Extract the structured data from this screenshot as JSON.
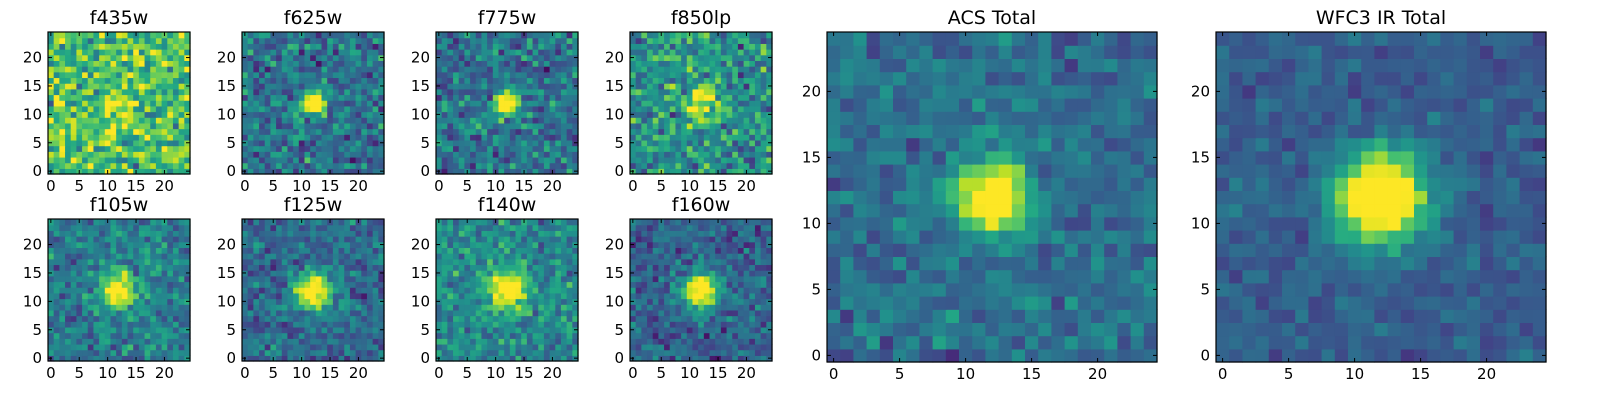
{
  "chart_data": {
    "type": "heatmap",
    "colormap": "viridis",
    "grid_size": 25,
    "source_center": [
      12,
      12
    ],
    "panels": [
      {
        "title": "f435w",
        "xticks": [
          "0",
          "5",
          "10",
          "15",
          "20"
        ],
        "yticks": [
          "0",
          "5",
          "10",
          "15",
          "20"
        ],
        "xlim": [
          -0.5,
          24.5
        ],
        "ylim": [
          -0.5,
          24.5
        ],
        "peak": 0.18,
        "sigma": 2.0,
        "noise": 0.34,
        "baseline": 0.7,
        "seed": 11
      },
      {
        "title": "f625w",
        "xticks": [
          "0",
          "5",
          "10",
          "15",
          "20"
        ],
        "yticks": [
          "0",
          "5",
          "10",
          "15",
          "20"
        ],
        "xlim": [
          -0.5,
          24.5
        ],
        "ylim": [
          -0.5,
          24.5
        ],
        "peak": 0.65,
        "sigma": 1.4,
        "noise": 0.26,
        "baseline": 0.38,
        "seed": 23
      },
      {
        "title": "f775w",
        "xticks": [
          "0",
          "5",
          "10",
          "15",
          "20"
        ],
        "yticks": [
          "0",
          "5",
          "10",
          "15",
          "20"
        ],
        "xlim": [
          -0.5,
          24.5
        ],
        "ylim": [
          -0.5,
          24.5
        ],
        "peak": 0.62,
        "sigma": 1.5,
        "noise": 0.26,
        "baseline": 0.38,
        "seed": 37
      },
      {
        "title": "f850lp",
        "xticks": [
          "0",
          "5",
          "10",
          "15",
          "20"
        ],
        "yticks": [
          "0",
          "5",
          "10",
          "15",
          "20"
        ],
        "xlim": [
          -0.5,
          24.5
        ],
        "ylim": [
          -0.5,
          24.5
        ],
        "peak": 0.42,
        "sigma": 1.9,
        "noise": 0.3,
        "baseline": 0.5,
        "seed": 41
      },
      {
        "title": "f105w",
        "xticks": [
          "0",
          "5",
          "10",
          "15",
          "20"
        ],
        "yticks": [
          "0",
          "5",
          "10",
          "15",
          "20"
        ],
        "xlim": [
          -0.5,
          24.5
        ],
        "ylim": [
          -0.5,
          24.5
        ],
        "peak": 0.55,
        "sigma": 2.1,
        "noise": 0.22,
        "baseline": 0.42,
        "seed": 53
      },
      {
        "title": "f125w",
        "xticks": [
          "0",
          "5",
          "10",
          "15",
          "20"
        ],
        "yticks": [
          "0",
          "5",
          "10",
          "15",
          "20"
        ],
        "xlim": [
          -0.5,
          24.5
        ],
        "ylim": [
          -0.5,
          24.5
        ],
        "peak": 0.62,
        "sigma": 2.2,
        "noise": 0.2,
        "baseline": 0.35,
        "seed": 67
      },
      {
        "title": "f140w",
        "xticks": [
          "0",
          "5",
          "10",
          "15",
          "20"
        ],
        "yticks": [
          "0",
          "5",
          "10",
          "15",
          "20"
        ],
        "xlim": [
          -0.5,
          24.5
        ],
        "ylim": [
          -0.5,
          24.5
        ],
        "peak": 0.5,
        "sigma": 2.3,
        "noise": 0.22,
        "baseline": 0.47,
        "seed": 79
      },
      {
        "title": "f160w",
        "xticks": [
          "0",
          "5",
          "10",
          "15",
          "20"
        ],
        "yticks": [
          "0",
          "5",
          "10",
          "15",
          "20"
        ],
        "xlim": [
          -0.5,
          24.5
        ],
        "ylim": [
          -0.5,
          24.5
        ],
        "peak": 0.65,
        "sigma": 2.1,
        "noise": 0.2,
        "baseline": 0.32,
        "seed": 83
      },
      {
        "title": "ACS Total",
        "xticks": [
          "0",
          "5",
          "10",
          "15",
          "20"
        ],
        "yticks": [
          "0",
          "5",
          "10",
          "15",
          "20"
        ],
        "xlim": [
          -0.5,
          24.5
        ],
        "ylim": [
          -0.5,
          24.5
        ],
        "peak": 0.68,
        "sigma": 1.8,
        "noise": 0.16,
        "baseline": 0.36,
        "seed": 97
      },
      {
        "title": "WFC3 IR Total",
        "xticks": [
          "0",
          "5",
          "10",
          "15",
          "20"
        ],
        "yticks": [
          "0",
          "5",
          "10",
          "15",
          "20"
        ],
        "xlim": [
          -0.5,
          24.5
        ],
        "ylim": [
          -0.5,
          24.5
        ],
        "peak": 0.72,
        "sigma": 2.4,
        "noise": 0.11,
        "baseline": 0.3,
        "seed": 101
      }
    ]
  }
}
